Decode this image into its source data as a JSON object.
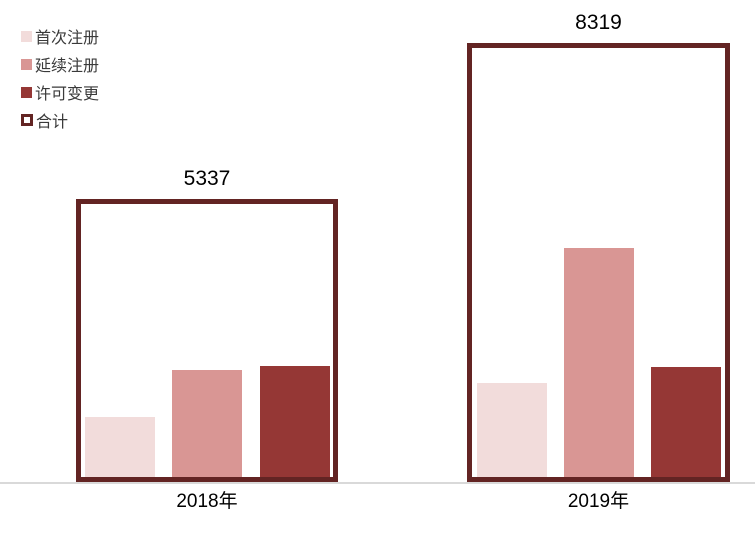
{
  "page": {
    "background": "#ffffff"
  },
  "chart_data": {
    "type": "bar",
    "title": "",
    "categories": [
      "2018年",
      "2019年"
    ],
    "series": [
      {
        "name": "首次注册",
        "color": "#f2dcdb",
        "values": [
          1150,
          1810
        ]
      },
      {
        "name": "延续注册",
        "color": "#d99694",
        "values": [
          2060,
          4390
        ]
      },
      {
        "name": "许可变更",
        "color": "#953735",
        "values": [
          2130,
          2100
        ]
      }
    ],
    "totals": {
      "name": "合计",
      "values": [
        5337,
        8319
      ],
      "style": "outlined-box",
      "box_border_color": "#632423"
    },
    "value_labels": [
      "5337",
      "8319"
    ],
    "note": "Only the group totals 5337 and 8319 are labeled in the chart; per-series bar values are estimated from bar heights.",
    "legend": {
      "position": "top-left",
      "entries": [
        "首次注册",
        "延续注册",
        "许可变更",
        "合计"
      ]
    },
    "axis": {
      "baseline_color": "#d9d9d9",
      "grid": false,
      "y_axis_visible": false,
      "ylim": [
        0,
        8700
      ]
    },
    "text_color": "#000000",
    "legend_text_color": "#3a3a3a"
  }
}
